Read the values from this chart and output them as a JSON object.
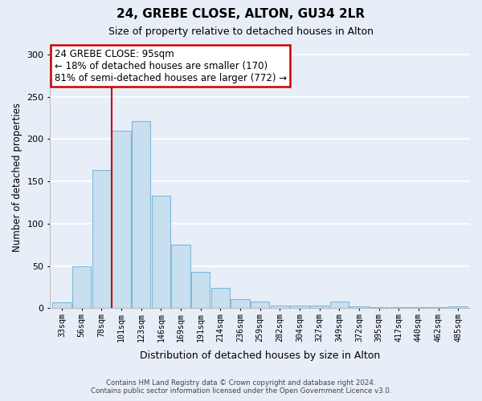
{
  "title": "24, GREBE CLOSE, ALTON, GU34 2LR",
  "subtitle": "Size of property relative to detached houses in Alton",
  "xlabel": "Distribution of detached houses by size in Alton",
  "ylabel": "Number of detached properties",
  "bar_labels": [
    "33sqm",
    "56sqm",
    "78sqm",
    "101sqm",
    "123sqm",
    "146sqm",
    "169sqm",
    "191sqm",
    "214sqm",
    "236sqm",
    "259sqm",
    "282sqm",
    "304sqm",
    "327sqm",
    "349sqm",
    "372sqm",
    "395sqm",
    "417sqm",
    "440sqm",
    "462sqm",
    "485sqm"
  ],
  "bar_values": [
    7,
    50,
    163,
    210,
    221,
    133,
    75,
    43,
    24,
    11,
    8,
    3,
    3,
    3,
    8,
    2,
    1,
    1,
    1,
    1,
    2
  ],
  "bar_color": "#c8dff0",
  "bar_edge_color": "#7fb8d8",
  "vline_x_idx": 3,
  "vline_color": "#cc0000",
  "annotation_title": "24 GREBE CLOSE: 95sqm",
  "annotation_line1": "← 18% of detached houses are smaller (170)",
  "annotation_line2": "81% of semi-detached houses are larger (772) →",
  "annotation_box_color": "#ffffff",
  "annotation_box_edge": "#cc0000",
  "ylim": [
    0,
    310
  ],
  "yticks": [
    0,
    50,
    100,
    150,
    200,
    250,
    300
  ],
  "footer1": "Contains HM Land Registry data © Crown copyright and database right 2024.",
  "footer2": "Contains public sector information licensed under the Open Government Licence v3.0.",
  "bg_color": "#e8eef8",
  "grid_color": "#ffffff"
}
